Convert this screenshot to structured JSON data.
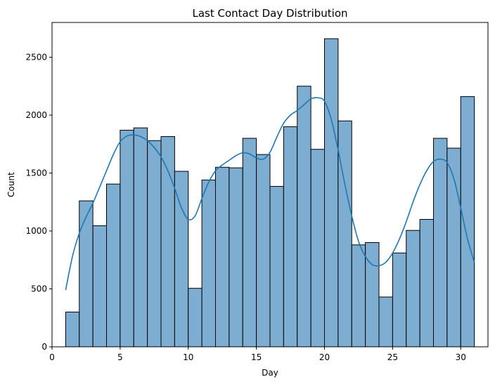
{
  "chart_data": {
    "type": "bar",
    "title": "Last Contact Day Distribution",
    "xlabel": "Day",
    "ylabel": "Count",
    "xlim": [
      0,
      32
    ],
    "ylim": [
      0,
      2800
    ],
    "xticks": [
      0,
      5,
      10,
      15,
      20,
      25,
      30
    ],
    "yticks": [
      0,
      500,
      1000,
      1500,
      2000,
      2500
    ],
    "bin_start": 1,
    "bin_width": 1,
    "values": [
      300,
      1260,
      1045,
      1405,
      1870,
      1890,
      1780,
      1815,
      1515,
      505,
      1440,
      1550,
      1545,
      1800,
      1660,
      1385,
      1900,
      2250,
      1705,
      2660,
      1950,
      880,
      900,
      430,
      810,
      1005,
      1100,
      1800,
      1715,
      2160
    ],
    "kde": {
      "x": [
        1,
        1.5,
        2,
        2.5,
        3,
        3.5,
        4,
        4.5,
        5,
        5.5,
        6,
        6.5,
        7,
        7.5,
        8,
        8.5,
        9,
        9.5,
        10,
        10.5,
        11,
        11.5,
        12,
        12.5,
        13,
        13.5,
        14,
        14.5,
        15,
        15.5,
        16,
        16.5,
        17,
        17.5,
        18,
        18.5,
        19,
        19.5,
        20,
        20.5,
        21,
        21.5,
        22,
        22.5,
        23,
        23.5,
        24,
        24.5,
        25,
        25.5,
        26,
        26.5,
        27,
        27.5,
        28,
        28.5,
        29,
        29.5,
        30,
        30.5,
        31
      ],
      "y": [
        490,
        780,
        980,
        1120,
        1240,
        1380,
        1520,
        1660,
        1770,
        1820,
        1830,
        1815,
        1780,
        1720,
        1640,
        1520,
        1370,
        1200,
        1100,
        1130,
        1280,
        1420,
        1520,
        1570,
        1610,
        1650,
        1675,
        1665,
        1630,
        1620,
        1680,
        1810,
        1930,
        2000,
        2040,
        2090,
        2140,
        2150,
        2120,
        1960,
        1700,
        1400,
        1130,
        910,
        780,
        710,
        700,
        730,
        810,
        930,
        1080,
        1250,
        1400,
        1520,
        1600,
        1620,
        1590,
        1450,
        1200,
        930,
        730
      ],
      "color": "#1f77b4"
    },
    "bar_fill": "#7eadd2",
    "bar_edge": "#000000"
  }
}
